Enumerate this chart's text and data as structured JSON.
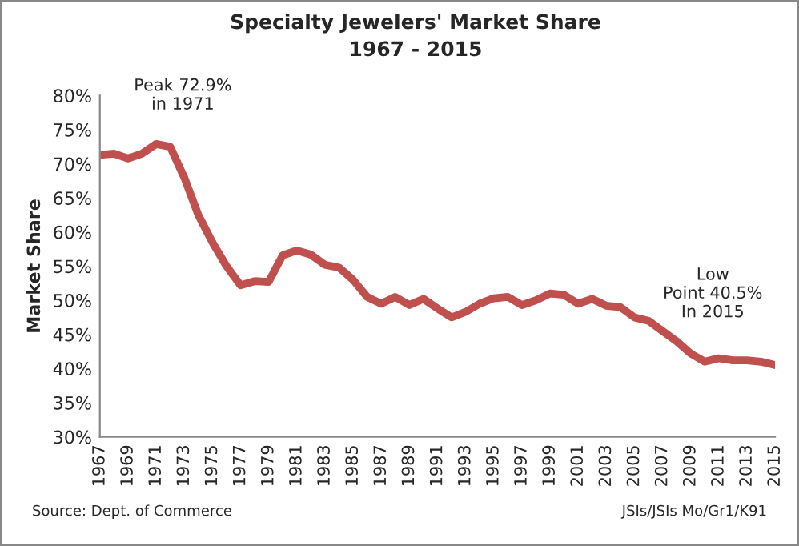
{
  "chart_data": {
    "type": "line",
    "title": "Specialty Jewelers' Market Share\n1967 - 2015",
    "ylabel": "Market Share",
    "x": [
      1967,
      1968,
      1969,
      1970,
      1971,
      1972,
      1973,
      1974,
      1975,
      1976,
      1977,
      1978,
      1979,
      1980,
      1981,
      1982,
      1983,
      1984,
      1985,
      1986,
      1987,
      1988,
      1989,
      1990,
      1991,
      1992,
      1993,
      1994,
      1995,
      1996,
      1997,
      1998,
      1999,
      2000,
      2001,
      2002,
      2003,
      2004,
      2005,
      2006,
      2007,
      2008,
      2009,
      2010,
      2011,
      2012,
      2013,
      2014,
      2015
    ],
    "series": [
      {
        "color": "#c0504d",
        "values": [
          71.3,
          71.5,
          70.8,
          71.5,
          72.9,
          72.5,
          68,
          62.5,
          58.5,
          55,
          52.2,
          52.8,
          52.7,
          56.6,
          57.3,
          56.7,
          55.2,
          54.8,
          53,
          50.5,
          49.5,
          50.5,
          49.3,
          50.2,
          48.8,
          47.5,
          48.3,
          49.5,
          50.3,
          50.5,
          49.3,
          50,
          51,
          50.8,
          49.5,
          50.2,
          49.2,
          49,
          47.5,
          47,
          45.5,
          44,
          42.2,
          41,
          41.5,
          41.2,
          41.2,
          41,
          40.5
        ]
      }
    ],
    "xlim": [
      1967,
      2015
    ],
    "xticks": [
      1967,
      1969,
      1971,
      1973,
      1975,
      1977,
      1979,
      1981,
      1983,
      1985,
      1987,
      1989,
      1991,
      1993,
      1995,
      1997,
      1999,
      2001,
      2003,
      2005,
      2007,
      2009,
      2011,
      2013,
      2015
    ],
    "ylim": [
      30,
      80
    ],
    "yticks": [
      {
        "value": 30,
        "label": "30%"
      },
      {
        "value": 35,
        "label": "35%"
      },
      {
        "value": 40,
        "label": "40%"
      },
      {
        "value": 45,
        "label": "45%"
      },
      {
        "value": 50,
        "label": "50%"
      },
      {
        "value": 55,
        "label": "55%"
      },
      {
        "value": 60,
        "label": "60%"
      },
      {
        "value": 65,
        "label": "65%"
      },
      {
        "value": 70,
        "label": "70%"
      },
      {
        "value": 75,
        "label": "75%"
      },
      {
        "value": 80,
        "label": "80%"
      }
    ],
    "grid": false,
    "legend": false,
    "line_style": "solid",
    "marker": "none",
    "annotations": [
      {
        "text": "Peak 72.9%\nin 1971",
        "x": 1971,
        "y": 72.9
      },
      {
        "text": "Low\nPoint 40.5%\nIn 2015",
        "x": 2015,
        "y": 40.5
      },
      "Source: Dept. of Commerce",
      "JSIs/JSIs Mo/Gr1/K91"
    ]
  }
}
